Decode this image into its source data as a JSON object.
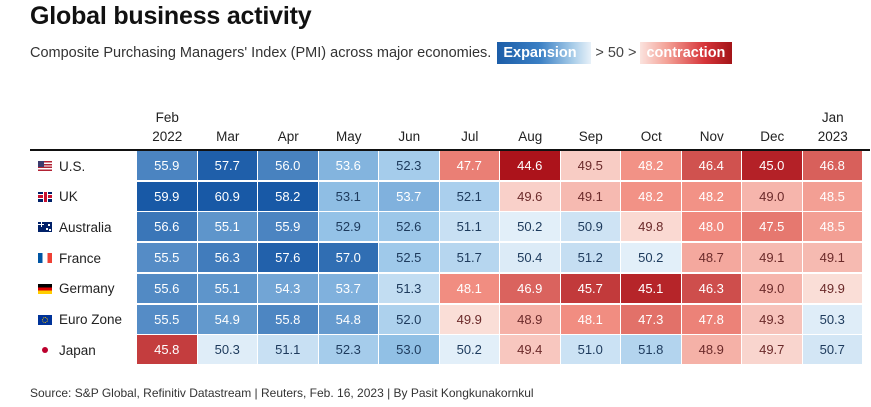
{
  "title": "Global business activity",
  "subtitle": "Composite Purchasing Managers' Index (PMI) across major economies.",
  "legend": {
    "expansion_label": "Expansion",
    "middle_text": "> 50 >",
    "contraction_label": "contraction"
  },
  "source": "Source: S&P Global, Refinitiv Datastream | Reuters, Feb. 16, 2023 | By Pasit Kongkunakornkul",
  "chart_data": {
    "type": "heatmap",
    "title": "Global business activity",
    "subtitle": "Composite Purchasing Managers' Index (PMI) across major economies.",
    "threshold": 50,
    "columns": [
      {
        "top": "Feb",
        "bottom": "2022"
      },
      {
        "top": "",
        "bottom": "Mar"
      },
      {
        "top": "",
        "bottom": "Apr"
      },
      {
        "top": "",
        "bottom": "May"
      },
      {
        "top": "",
        "bottom": "Jun"
      },
      {
        "top": "",
        "bottom": "Jul"
      },
      {
        "top": "",
        "bottom": "Aug"
      },
      {
        "top": "",
        "bottom": "Sep"
      },
      {
        "top": "",
        "bottom": "Oct"
      },
      {
        "top": "",
        "bottom": "Nov"
      },
      {
        "top": "",
        "bottom": "Dec"
      },
      {
        "top": "Jan",
        "bottom": "2023"
      }
    ],
    "rows": [
      {
        "name": "U.S.",
        "flag": "us-flag-icon",
        "values": [
          55.9,
          57.7,
          56.0,
          53.6,
          52.3,
          47.7,
          44.6,
          49.5,
          48.2,
          46.4,
          45.0,
          46.8
        ]
      },
      {
        "name": "UK",
        "flag": "uk-flag-icon",
        "values": [
          59.9,
          60.9,
          58.2,
          53.1,
          53.7,
          52.1,
          49.6,
          49.1,
          48.2,
          48.2,
          49.0,
          48.5
        ]
      },
      {
        "name": "Australia",
        "flag": "australia-flag-icon",
        "values": [
          56.6,
          55.1,
          55.9,
          52.9,
          52.6,
          51.1,
          50.2,
          50.9,
          49.8,
          48.0,
          47.5,
          48.5
        ]
      },
      {
        "name": "France",
        "flag": "france-flag-icon",
        "values": [
          55.5,
          56.3,
          57.6,
          57.0,
          52.5,
          51.7,
          50.4,
          51.2,
          50.2,
          48.7,
          49.1,
          49.1
        ]
      },
      {
        "name": "Germany",
        "flag": "germany-flag-icon",
        "values": [
          55.6,
          55.1,
          54.3,
          53.7,
          51.3,
          48.1,
          46.9,
          45.7,
          45.1,
          46.3,
          49.0,
          49.9
        ]
      },
      {
        "name": "Euro Zone",
        "flag": "eu-flag-icon",
        "values": [
          55.5,
          54.9,
          55.8,
          54.8,
          52.0,
          49.9,
          48.9,
          48.1,
          47.3,
          47.8,
          49.3,
          50.3
        ]
      },
      {
        "name": "Japan",
        "flag": "japan-flag-icon",
        "values": [
          45.8,
          50.3,
          51.1,
          52.3,
          53.0,
          50.2,
          49.4,
          51.0,
          51.8,
          48.9,
          49.7,
          50.7
        ]
      }
    ]
  }
}
